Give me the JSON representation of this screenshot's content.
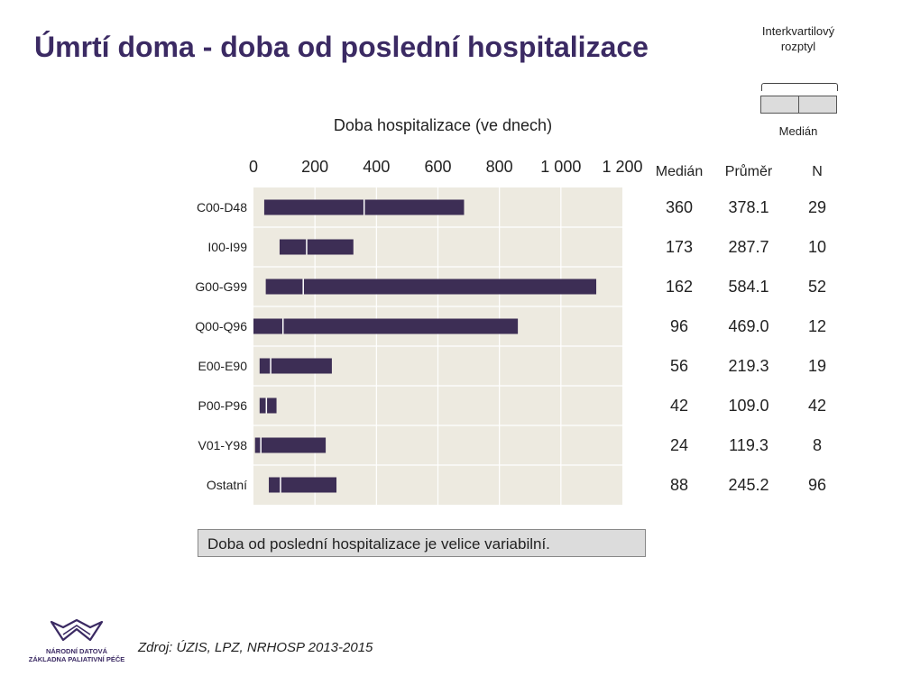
{
  "title": "Úmrtí doma - doba od poslední hospitalizace",
  "legend": {
    "iqr_label_line1": "Interkvartilový",
    "iqr_label_line2": "rozptyl",
    "median_label": "Medián"
  },
  "chart_data": {
    "type": "bar",
    "subtype": "range-bar-with-median",
    "title": "Doba hospitalizace (ve dnech)",
    "x_ticks": [
      "0",
      "200",
      "400",
      "600",
      "800",
      "1 000",
      "1 200"
    ],
    "x_tick_values": [
      0,
      200,
      400,
      600,
      800,
      1000,
      1200
    ],
    "xlim": [
      0,
      1200
    ],
    "grid": true,
    "categories": [
      "C00-D48",
      "I00-I99",
      "G00-G99",
      "Q00-Q96",
      "E00-E90",
      "P00-P96",
      "V01-Y98",
      "Ostatní"
    ],
    "iqr_low": [
      35,
      85,
      40,
      0,
      20,
      20,
      5,
      50
    ],
    "iqr_high": [
      685,
      325,
      1115,
      860,
      255,
      75,
      235,
      270
    ],
    "median": [
      360,
      173,
      162,
      96,
      56,
      42,
      24,
      88
    ],
    "colors": {
      "bar": "#3d2e55",
      "plot_bg": "#edeae0",
      "median_line": "#ffffff"
    }
  },
  "stats": {
    "headers": {
      "median": "Medián",
      "mean": "Průměr",
      "n": "N"
    },
    "rows": [
      {
        "median": "360",
        "mean": "378.1",
        "n": "29"
      },
      {
        "median": "173",
        "mean": "287.7",
        "n": "10"
      },
      {
        "median": "162",
        "mean": "584.1",
        "n": "52"
      },
      {
        "median": "96",
        "mean": "469.0",
        "n": "12"
      },
      {
        "median": "56",
        "mean": "219.3",
        "n": "19"
      },
      {
        "median": "42",
        "mean": "109.0",
        "n": "42"
      },
      {
        "median": "24",
        "mean": "119.3",
        "n": "8"
      },
      {
        "median": "88",
        "mean": "245.2",
        "n": "96"
      }
    ]
  },
  "note": "Doba od poslední hospitalizace je velice variabilní.",
  "source": "Zdroj: ÚZIS, LPZ, NRHOSP 2013-2015",
  "logo": {
    "line1": "NÁRODNÍ DATOVÁ",
    "line2": "ZÁKLADNA PALIATIVNÍ PÉČE",
    "color": "#3b2a63"
  }
}
